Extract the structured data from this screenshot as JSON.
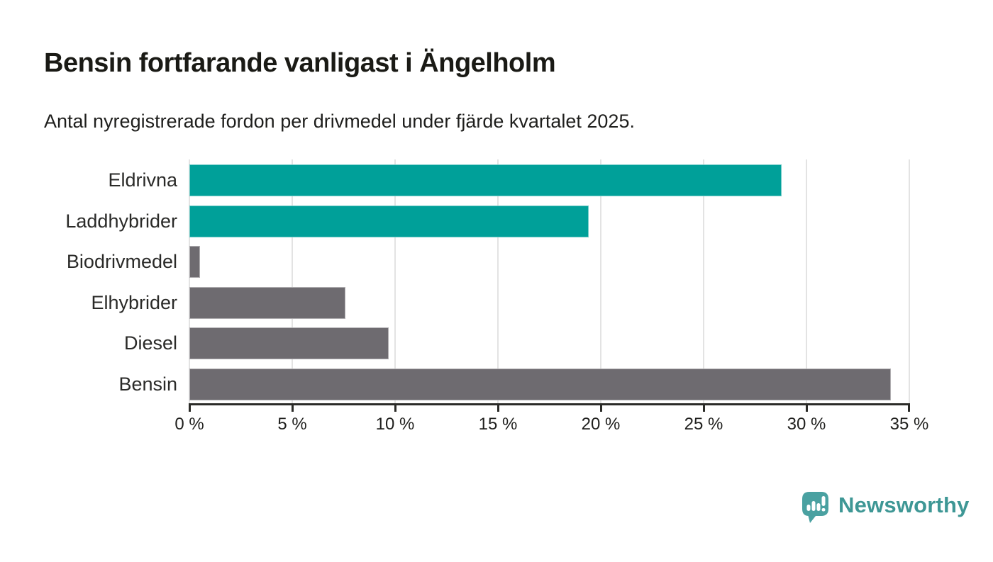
{
  "title": "Bensin fortfarande vanligast i Ängelholm",
  "subtitle": "Antal nyregistrerade fordon per drivmedel under fjärde kvartalet 2025.",
  "chart_data": {
    "type": "bar",
    "orientation": "horizontal",
    "title": "Bensin fortfarande vanligast i Ängelholm",
    "subtitle": "Antal nyregistrerade fordon per drivmedel under fjärde kvartalet 2025.",
    "categories": [
      "Eldrivna",
      "Laddhybrider",
      "Biodrivmedel",
      "Elhybrider",
      "Diesel",
      "Bensin"
    ],
    "values": [
      28.8,
      19.4,
      0.5,
      7.6,
      9.7,
      34.1
    ],
    "unit": "%",
    "xlim": [
      0,
      35
    ],
    "x_ticks": [
      0,
      5,
      10,
      15,
      20,
      25,
      30,
      35
    ],
    "x_tick_labels": [
      "0 %",
      "5 %",
      "10 %",
      "15 %",
      "20 %",
      "25 %",
      "30 %",
      "35 %"
    ],
    "bar_colors": [
      "#00A099",
      "#00A099",
      "#6E6B70",
      "#6E6B70",
      "#6E6B70",
      "#6E6B70"
    ],
    "grid": true,
    "legend": null,
    "colors": {
      "teal": "#00A099",
      "gray": "#6E6B70",
      "gridline": "#E3E3E3",
      "axis": "#2B2B28"
    }
  },
  "branding": {
    "logo_text": "Newsworthy",
    "logo_text_color": "#3E9795",
    "logo_icon_color": "#4AA1A1",
    "logo_icon": "bar-chart-speech-bubble-icon"
  }
}
